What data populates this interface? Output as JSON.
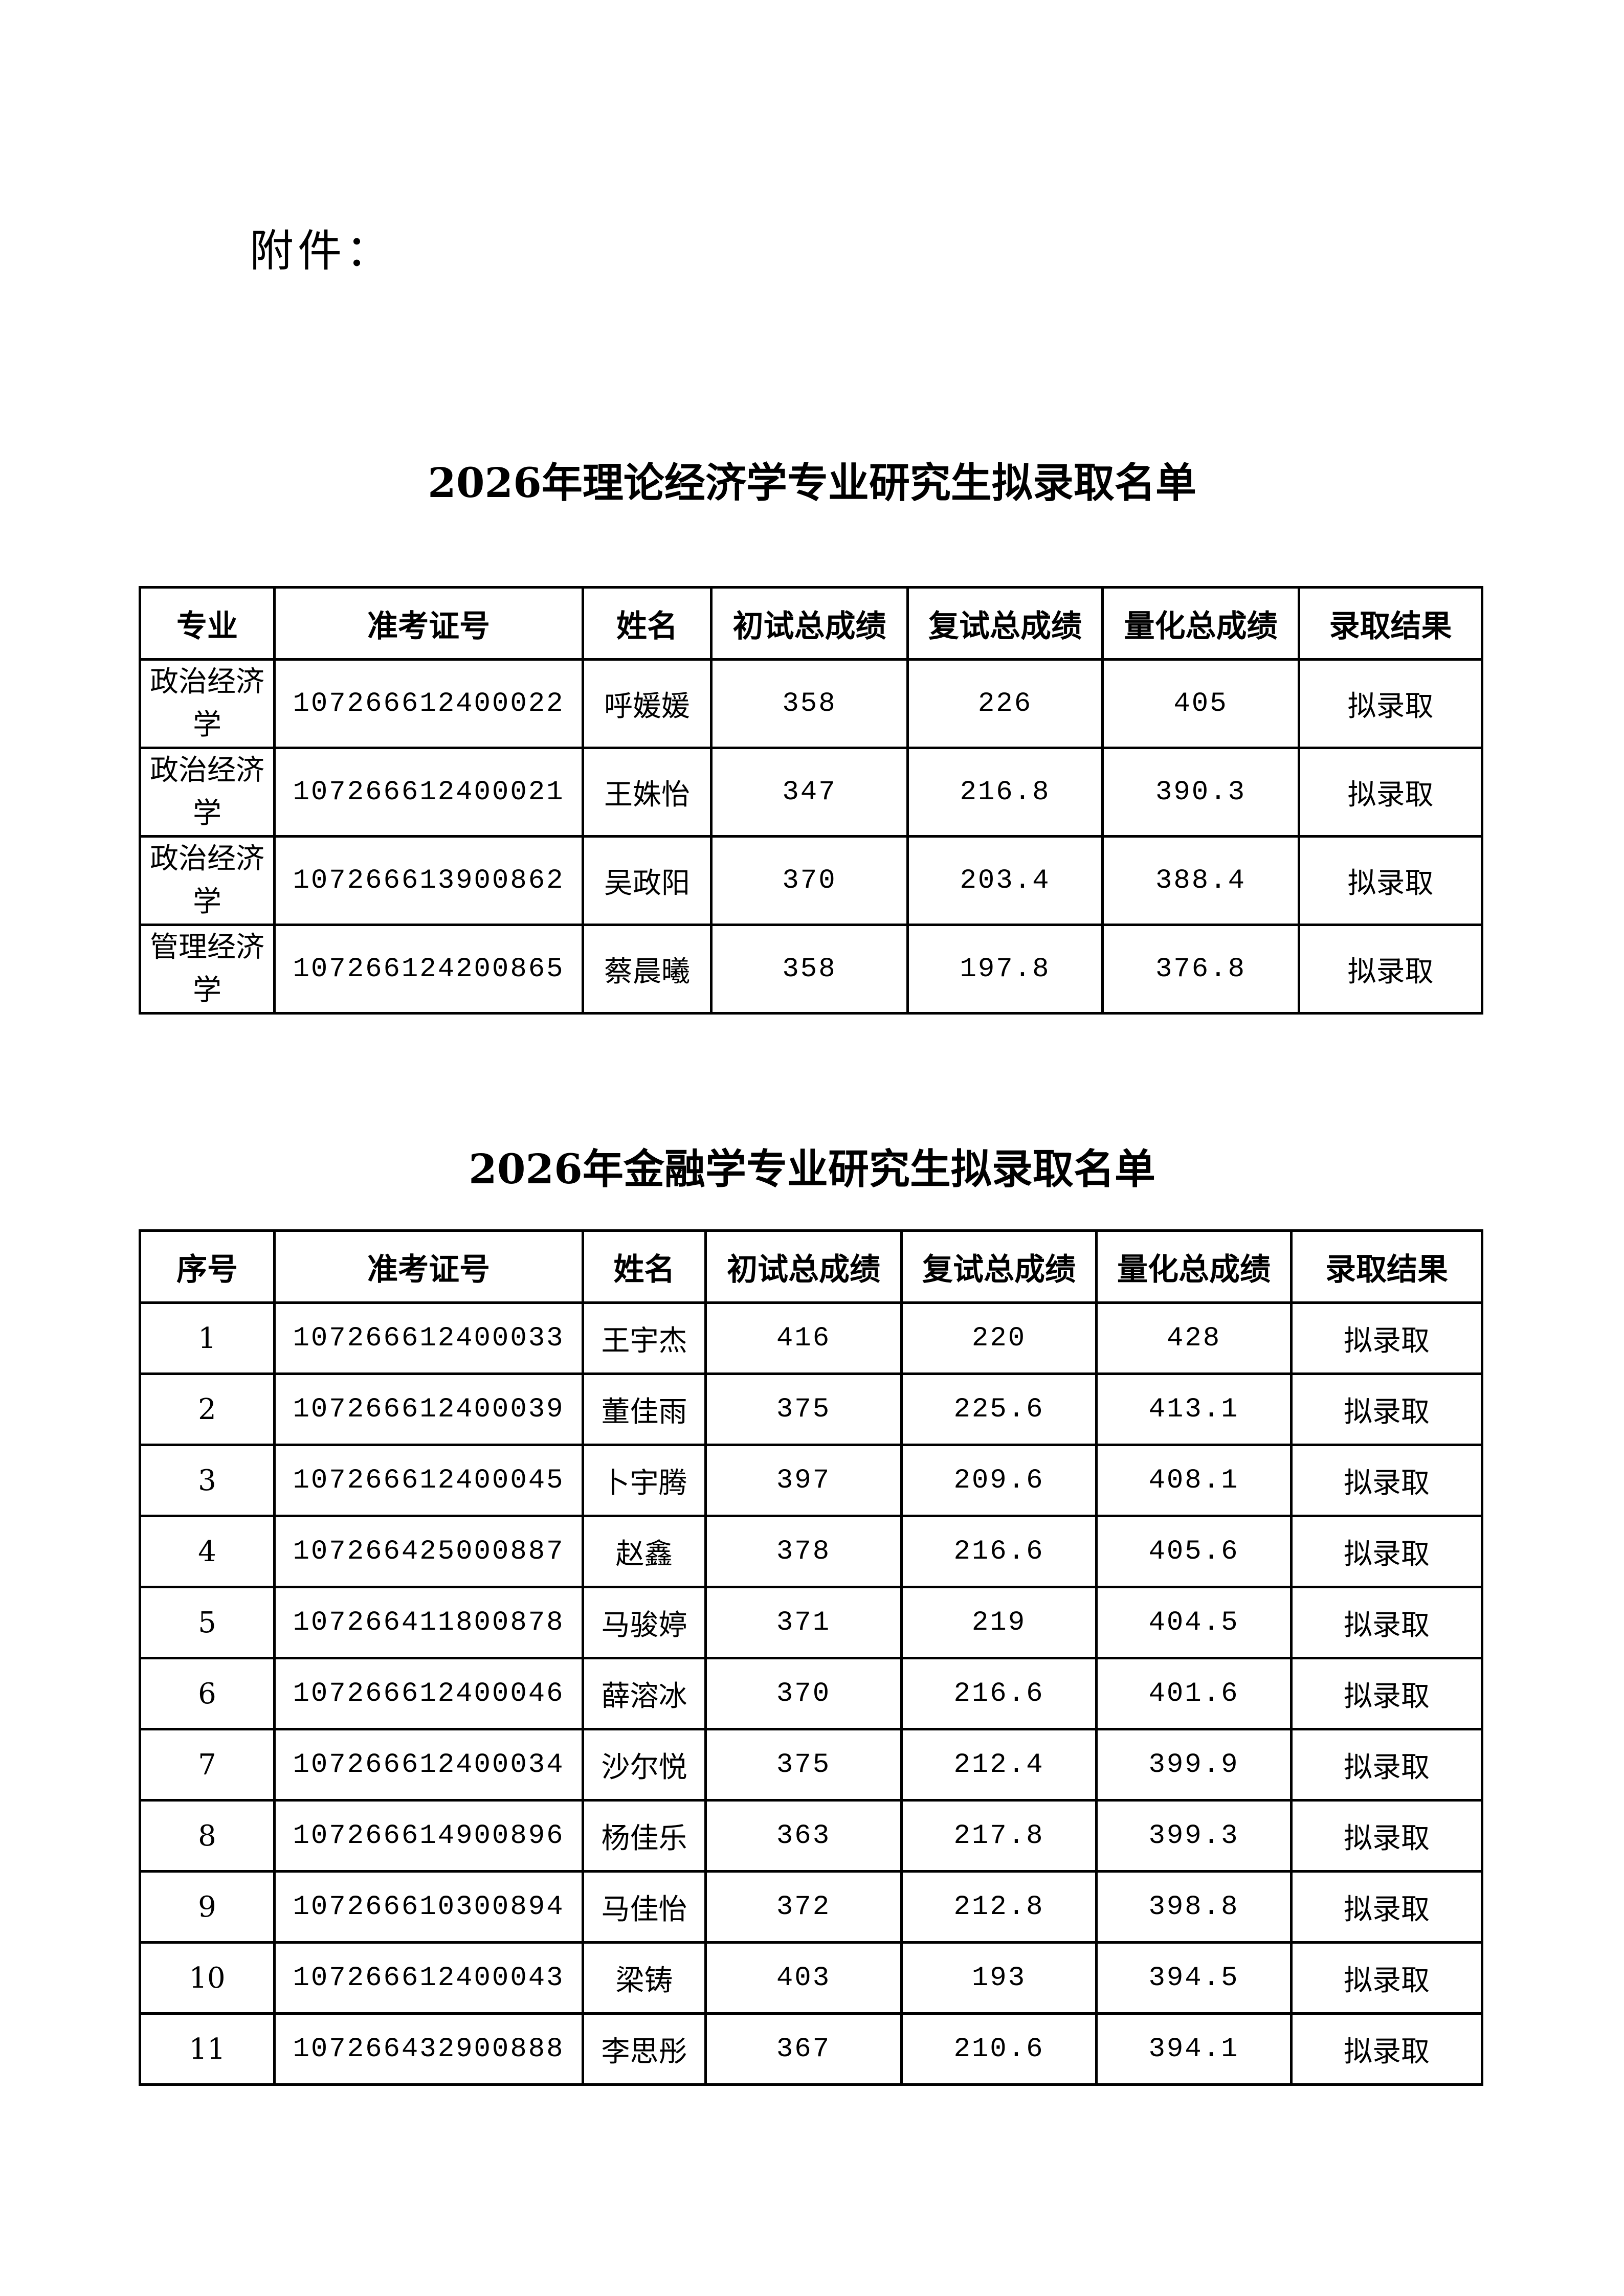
{
  "attachment_label": "附件：",
  "table1": {
    "title": "2026年理论经济学专业研究生拟录取名单",
    "headers": [
      "专业",
      "准考证号",
      "姓名",
      "初试总成绩",
      "复试总成绩",
      "量化总成绩",
      "录取结果"
    ],
    "rows": [
      [
        "政治经济学",
        "107266612400022",
        "呼媛媛",
        "358",
        "226",
        "405",
        "拟录取"
      ],
      [
        "政治经济学",
        "107266612400021",
        "王姝怡",
        "347",
        "216.8",
        "390.3",
        "拟录取"
      ],
      [
        "政治经济学",
        "107266613900862",
        "吴政阳",
        "370",
        "203.4",
        "388.4",
        "拟录取"
      ],
      [
        "管理经济学",
        "107266124200865",
        "蔡晨曦",
        "358",
        "197.8",
        "376.8",
        "拟录取"
      ]
    ]
  },
  "table2": {
    "title": "2026年金融学专业研究生拟录取名单",
    "headers": [
      "序号",
      "准考证号",
      "姓名",
      "初试总成绩",
      "复试总成绩",
      "量化总成绩",
      "录取结果"
    ],
    "rows": [
      [
        "1",
        "107266612400033",
        "王宇杰",
        "416",
        "220",
        "428",
        "拟录取"
      ],
      [
        "2",
        "107266612400039",
        "董佳雨",
        "375",
        "225.6",
        "413.1",
        "拟录取"
      ],
      [
        "3",
        "107266612400045",
        "卜宇腾",
        "397",
        "209.6",
        "408.1",
        "拟录取"
      ],
      [
        "4",
        "107266425000887",
        "赵鑫",
        "378",
        "216.6",
        "405.6",
        "拟录取"
      ],
      [
        "5",
        "107266411800878",
        "马骏婷",
        "371",
        "219",
        "404.5",
        "拟录取"
      ],
      [
        "6",
        "107266612400046",
        "薛溶冰",
        "370",
        "216.6",
        "401.6",
        "拟录取"
      ],
      [
        "7",
        "107266612400034",
        "沙尔悦",
        "375",
        "212.4",
        "399.9",
        "拟录取"
      ],
      [
        "8",
        "107266614900896",
        "杨佳乐",
        "363",
        "217.8",
        "399.3",
        "拟录取"
      ],
      [
        "9",
        "107266610300894",
        "马佳怡",
        "372",
        "212.8",
        "398.8",
        "拟录取"
      ],
      [
        "10",
        "107266612400043",
        "梁铸",
        "403",
        "193",
        "394.5",
        "拟录取"
      ],
      [
        "11",
        "107266432900888",
        "李思彤",
        "367",
        "210.6",
        "394.1",
        "拟录取"
      ]
    ]
  }
}
